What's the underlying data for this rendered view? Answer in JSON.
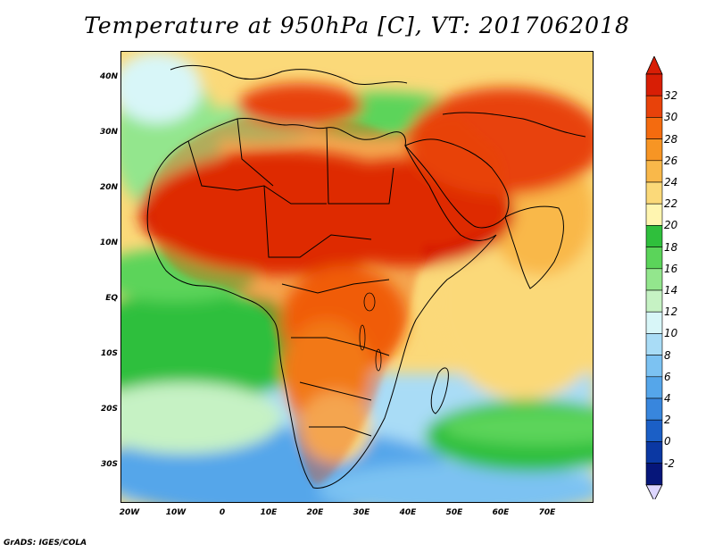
{
  "title": "Temperature at 950hPa [C], VT: 2017062018",
  "credit": "GrADS: IGES/COLA",
  "lat_labels": [
    "40N",
    "30N",
    "20N",
    "10N",
    "EQ",
    "10S",
    "20S",
    "30S"
  ],
  "lon_labels": [
    "20W",
    "10W",
    "0",
    "10E",
    "20E",
    "30E",
    "40E",
    "50E",
    "60E",
    "70E"
  ],
  "colorbar": {
    "labels": [
      "32",
      "30",
      "28",
      "26",
      "24",
      "22",
      "20",
      "18",
      "16",
      "14",
      "12",
      "10",
      "8",
      "6",
      "4",
      "2",
      "0",
      "-2"
    ],
    "colors": [
      "#d81e05",
      "#e8420a",
      "#f46b0f",
      "#f79524",
      "#f9b84a",
      "#fbd979",
      "#fff5b0",
      "#2fbf3c",
      "#5bd45a",
      "#93e68d",
      "#c6f2c4",
      "#d8f6f8",
      "#a9dcf6",
      "#7cc2f2",
      "#55a6ea",
      "#3886dd",
      "#1b5fc6",
      "#0b38a3",
      "#06167a"
    ],
    "over_color": "#d81e05",
    "under_color": "#ddd6ff"
  }
}
